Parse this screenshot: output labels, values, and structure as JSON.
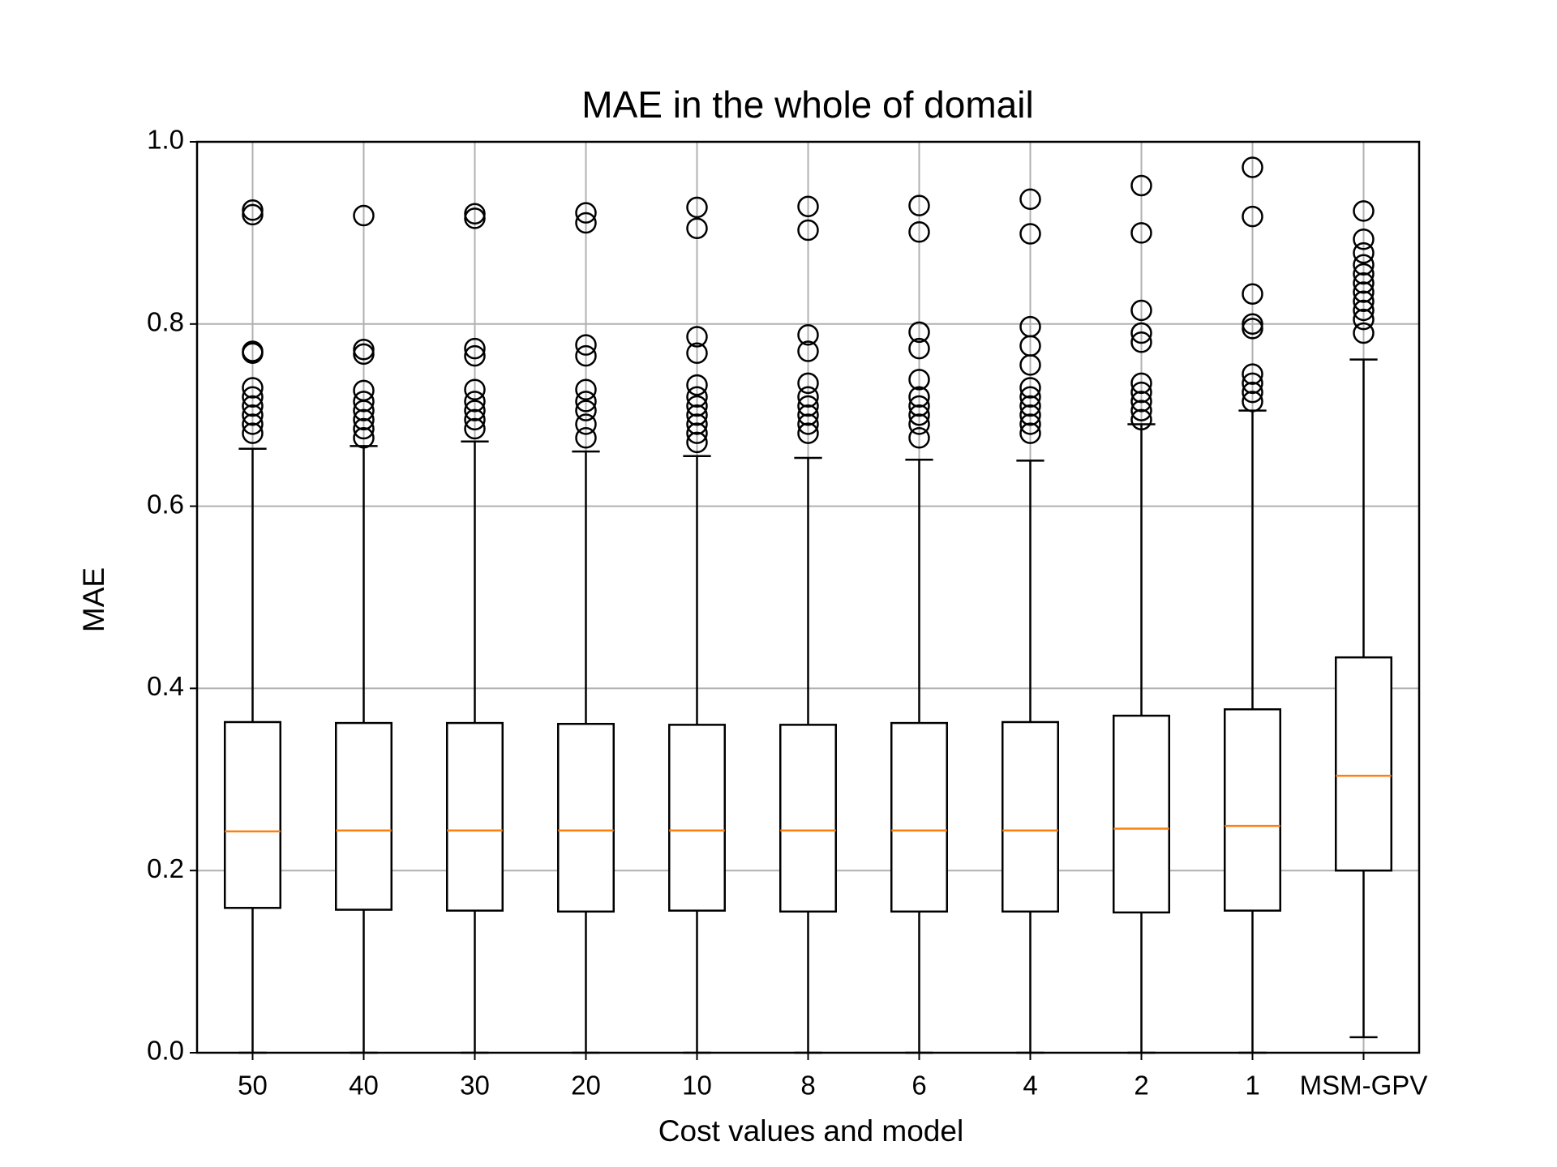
{
  "chart_data": {
    "type": "box",
    "title": "MAE in the whole of domail",
    "x_label": "Cost values and model",
    "y_label": "MAE",
    "categories": [
      "50",
      "40",
      "30",
      "20",
      "10",
      "8",
      "6",
      "4",
      "2",
      "1",
      "MSM-GPV"
    ],
    "boxes": [
      {
        "whislo": 0.0,
        "q1": 0.159,
        "med": 0.243,
        "q3": 0.363,
        "whishi": 0.663,
        "fliers": [
          0.925,
          0.92,
          0.77,
          0.768,
          0.73,
          0.72,
          0.71,
          0.7,
          0.69,
          0.68
        ]
      },
      {
        "whislo": 0.0,
        "q1": 0.157,
        "med": 0.244,
        "q3": 0.362,
        "whishi": 0.666,
        "fliers": [
          0.919,
          0.772,
          0.767,
          0.727,
          0.715,
          0.705,
          0.695,
          0.685,
          0.675
        ]
      },
      {
        "whislo": 0.0,
        "q1": 0.156,
        "med": 0.244,
        "q3": 0.362,
        "whishi": 0.671,
        "fliers": [
          0.921,
          0.916,
          0.773,
          0.765,
          0.728,
          0.715,
          0.705,
          0.695,
          0.685
        ]
      },
      {
        "whislo": 0.0,
        "q1": 0.155,
        "med": 0.244,
        "q3": 0.361,
        "whishi": 0.66,
        "fliers": [
          0.922,
          0.911,
          0.777,
          0.765,
          0.728,
          0.715,
          0.705,
          0.69,
          0.675
        ]
      },
      {
        "whislo": 0.0,
        "q1": 0.156,
        "med": 0.244,
        "q3": 0.36,
        "whishi": 0.655,
        "fliers": [
          0.928,
          0.905,
          0.786,
          0.768,
          0.733,
          0.72,
          0.71,
          0.7,
          0.69,
          0.68,
          0.67
        ]
      },
      {
        "whislo": 0.0,
        "q1": 0.155,
        "med": 0.244,
        "q3": 0.36,
        "whishi": 0.653,
        "fliers": [
          0.929,
          0.903,
          0.788,
          0.77,
          0.735,
          0.72,
          0.71,
          0.7,
          0.69,
          0.68
        ]
      },
      {
        "whislo": 0.0,
        "q1": 0.155,
        "med": 0.244,
        "q3": 0.362,
        "whishi": 0.651,
        "fliers": [
          0.93,
          0.901,
          0.791,
          0.773,
          0.739,
          0.72,
          0.71,
          0.7,
          0.69,
          0.675
        ]
      },
      {
        "whislo": 0.0,
        "q1": 0.155,
        "med": 0.244,
        "q3": 0.363,
        "whishi": 0.65,
        "fliers": [
          0.937,
          0.899,
          0.797,
          0.776,
          0.755,
          0.73,
          0.72,
          0.71,
          0.7,
          0.69,
          0.68
        ]
      },
      {
        "whislo": 0.0,
        "q1": 0.154,
        "med": 0.246,
        "q3": 0.37,
        "whishi": 0.69,
        "fliers": [
          0.952,
          0.9,
          0.815,
          0.79,
          0.78,
          0.735,
          0.725,
          0.715,
          0.705,
          0.695
        ]
      },
      {
        "whislo": 0.0,
        "q1": 0.156,
        "med": 0.249,
        "q3": 0.377,
        "whishi": 0.705,
        "fliers": [
          0.972,
          0.918,
          0.833,
          0.8,
          0.795,
          0.745,
          0.735,
          0.725,
          0.715
        ]
      },
      {
        "whislo": 0.017,
        "q1": 0.2,
        "med": 0.304,
        "q3": 0.434,
        "whishi": 0.761,
        "fliers": [
          0.924,
          0.893,
          0.878,
          0.865,
          0.855,
          0.845,
          0.835,
          0.825,
          0.815,
          0.805,
          0.79
        ]
      }
    ],
    "box_color": "#000000",
    "median_color": "#ff7f0e",
    "ylim": [
      0,
      1
    ],
    "yticks": [
      {
        "value": 0,
        "label": "0.0"
      },
      0.2,
      0.4,
      0.6,
      0.8,
      {
        "value": 1,
        "label": "1.0"
      }
    ],
    "grid": true
  }
}
